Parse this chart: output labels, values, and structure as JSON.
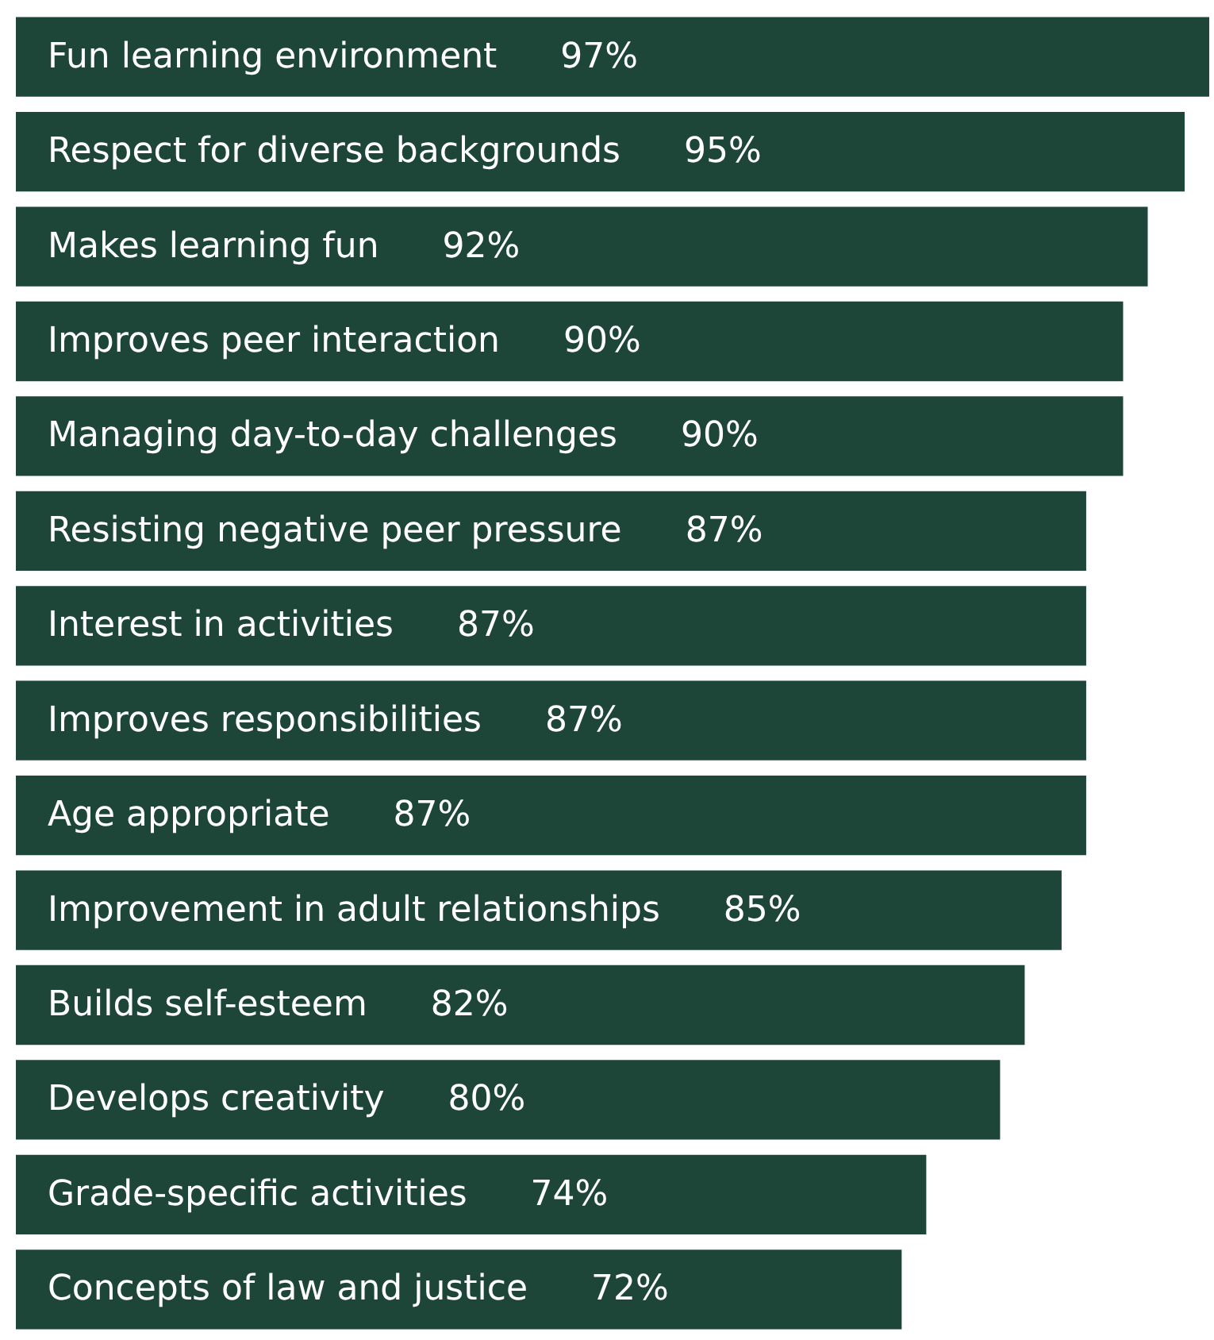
{
  "chart_data": {
    "type": "bar",
    "orientation": "horizontal",
    "color": "#1d4638",
    "categories": [
      "Fun learning environment",
      "Respect for diverse backgrounds",
      "Makes learning fun",
      "Improves peer interaction",
      "Managing day-to-day challenges",
      "Resisting negative peer pressure",
      "Interest in activities",
      "Improves responsibilities",
      "Age appropriate",
      "Improvement in adult relationships",
      "Builds self-esteem",
      "Develops creativity",
      "Grade-specific activities",
      "Concepts of law and justice"
    ],
    "values": [
      97,
      95,
      92,
      90,
      90,
      87,
      87,
      87,
      87,
      85,
      82,
      80,
      74,
      72
    ],
    "value_labels": [
      "97%",
      "95%",
      "92%",
      "90%",
      "90%",
      "87%",
      "87%",
      "87%",
      "87%",
      "85%",
      "82%",
      "80%",
      "74%",
      "72%"
    ],
    "tick_labels": "y"
  }
}
